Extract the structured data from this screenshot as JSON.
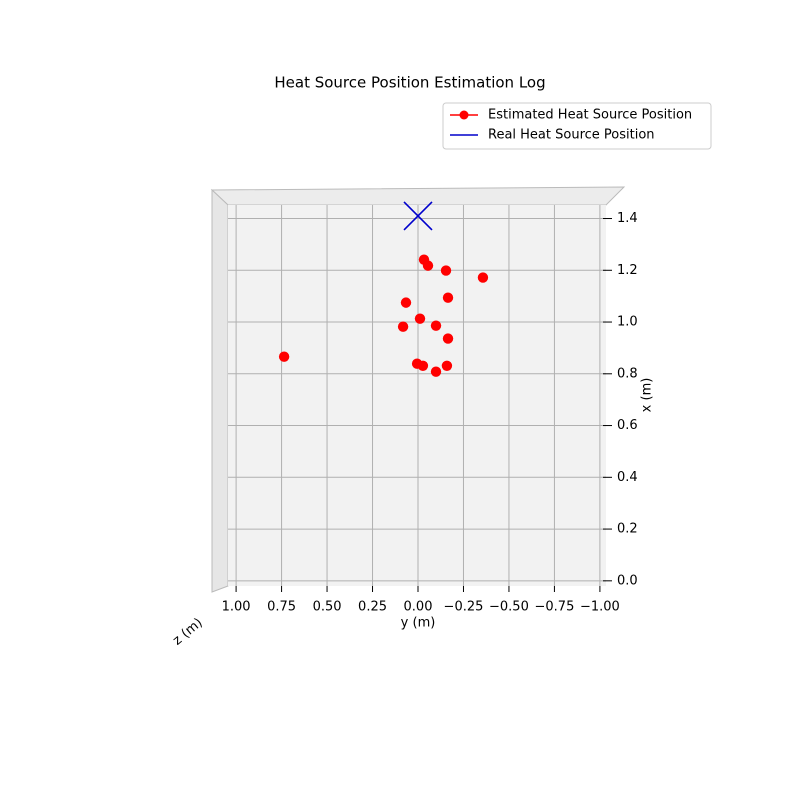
{
  "chart_data": {
    "type": "scatter",
    "title": "Heat Source Position Estimation Log",
    "x_label": "y (m)",
    "y_label": "x (m)",
    "z_label": "z (m)",
    "xlim": [
      1.05,
      -1.05
    ],
    "ylim": [
      -0.02,
      1.46
    ],
    "xticks": [
      {
        "value": 1,
        "label": "1.00"
      },
      {
        "value": 0.75,
        "label": "0.75"
      },
      {
        "value": 0.5,
        "label": "0.50"
      },
      {
        "value": 0.25,
        "label": "0.25"
      },
      {
        "value": 0,
        "label": "0.00"
      },
      {
        "value": -0.25,
        "label": "−0.25"
      },
      {
        "value": -0.5,
        "label": "−0.50"
      },
      {
        "value": -0.75,
        "label": "−0.75"
      },
      {
        "value": -1,
        "label": "−1.00"
      }
    ],
    "yticks": [
      {
        "value": 0,
        "label": "0.0"
      },
      {
        "value": 0.2,
        "label": "0.2"
      },
      {
        "value": 0.4,
        "label": "0.4"
      },
      {
        "value": 0.6,
        "label": "0.6"
      },
      {
        "value": 0.8,
        "label": "0.8"
      },
      {
        "value": 1,
        "label": "1.0"
      },
      {
        "value": 1.2,
        "label": "1.2"
      },
      {
        "value": 1.4,
        "label": "1.4"
      }
    ],
    "grid": true,
    "legend": "upper right",
    "series": [
      {
        "name": "Estimated Heat Source Position",
        "color": "#ff0000",
        "marker": "o",
        "x": [
          -0.033,
          -0.055,
          -0.154,
          -0.357,
          -0.165,
          0.066,
          -0.011,
          0.082,
          -0.099,
          -0.165,
          0.736,
          0.005,
          -0.027,
          -0.159,
          -0.099
        ],
        "y": [
          1.241,
          1.218,
          1.199,
          1.172,
          1.094,
          1.075,
          1.013,
          0.982,
          0.986,
          0.936,
          0.866,
          0.839,
          0.831,
          0.831,
          0.808
        ]
      },
      {
        "name": "Real Heat Source Position",
        "color": "#0000cc",
        "marker": "x",
        "x": [
          0
        ],
        "y": [
          1.41
        ]
      }
    ]
  }
}
